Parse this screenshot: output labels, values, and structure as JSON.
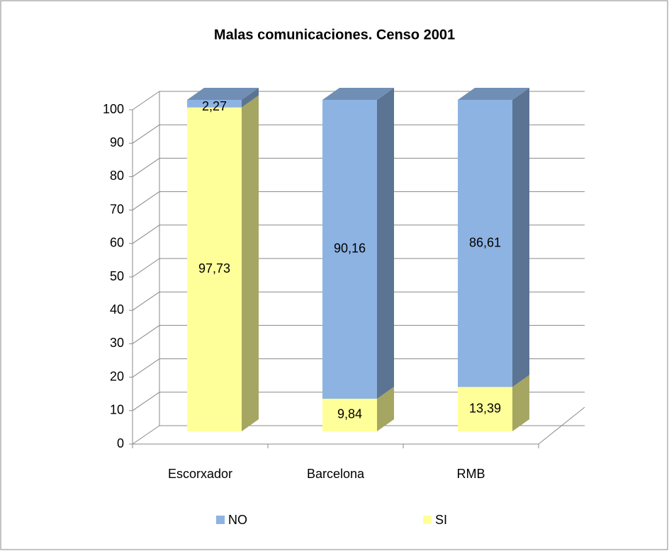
{
  "chart_data": {
    "type": "stacked-bar-3d",
    "title": "Malas comunicaciones. Censo 2001",
    "categories": [
      "Escorxador",
      "Barcelona",
      "RMB"
    ],
    "series": [
      {
        "name": "NO",
        "color": "#8db3e2",
        "values": [
          2.27,
          90.16,
          86.61
        ],
        "value_labels": [
          "2,27",
          "90,16",
          "86,61"
        ]
      },
      {
        "name": "SI",
        "color": "#ffff99",
        "values": [
          97.73,
          9.84,
          13.39
        ],
        "value_labels": [
          "97,73",
          "9,84",
          "13,39"
        ]
      }
    ],
    "ylim": [
      0,
      100
    ],
    "yticks": [
      0,
      10,
      20,
      30,
      40,
      50,
      60,
      70,
      80,
      90,
      100
    ],
    "grid": true,
    "legend": "bottom"
  }
}
